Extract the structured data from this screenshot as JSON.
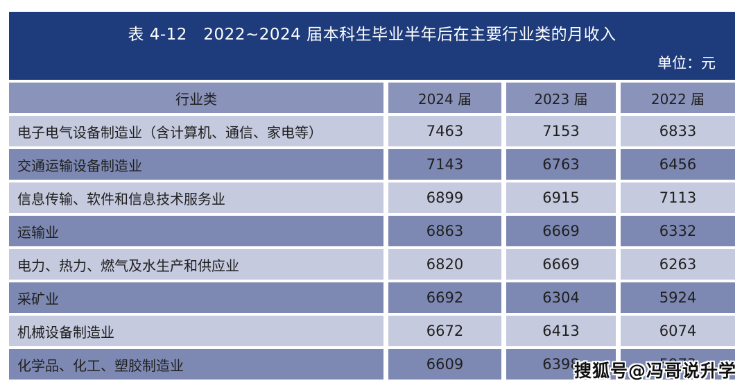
{
  "table": {
    "title": "表 4-12　2022~2024 届本科生毕业半年后在主要行业类的月收入",
    "unit": "单位：元",
    "columns": [
      "行业类",
      "2024 届",
      "2023 届",
      "2022 届"
    ],
    "rows": [
      {
        "industry": "电子电气设备制造业（含计算机、通信、家电等）",
        "values": [
          "7463",
          "7153",
          "6833"
        ]
      },
      {
        "industry": "交通运输设备制造业",
        "values": [
          "7143",
          "6763",
          "6456"
        ]
      },
      {
        "industry": "信息传输、软件和信息技术服务业",
        "values": [
          "6899",
          "6915",
          "7113"
        ]
      },
      {
        "industry": "运输业",
        "values": [
          "6863",
          "6669",
          "6332"
        ]
      },
      {
        "industry": "电力、热力、燃气及水生产和供应业",
        "values": [
          "6820",
          "6669",
          "6263"
        ]
      },
      {
        "industry": "采矿业",
        "values": [
          "6692",
          "6304",
          "5924"
        ]
      },
      {
        "industry": "机械设备制造业",
        "values": [
          "6672",
          "6413",
          "6074"
        ]
      },
      {
        "industry": "化学品、化工、塑胶制造业",
        "values": [
          "6609",
          "6398",
          "5973"
        ]
      }
    ]
  },
  "watermark": {
    "text": "搜狐号@冯哥说升学"
  },
  "colors": {
    "title_bar": "#1e3c7c",
    "header_row": "#8a93ba",
    "row_dark": "#7d89b3",
    "row_light": "#c5cade",
    "title_text": "#ffffff",
    "cell_text": "#1f1f1f",
    "page_bg": "#ffffff"
  },
  "chart_data": {
    "type": "table",
    "title": "表 4-12 2022~2024 届本科生毕业半年后在主要行业类的月收入",
    "unit": "元",
    "categories": [
      "电子电气设备制造业（含计算机、通信、家电等）",
      "交通运输设备制造业",
      "信息传输、软件和信息技术服务业",
      "运输业",
      "电力、热力、燃气及水生产和供应业",
      "采矿业",
      "机械设备制造业",
      "化学品、化工、塑胶制造业"
    ],
    "series": [
      {
        "name": "2024 届",
        "values": [
          7463,
          7143,
          6899,
          6863,
          6820,
          6692,
          6672,
          6609
        ]
      },
      {
        "name": "2023 届",
        "values": [
          7153,
          6763,
          6915,
          6669,
          6669,
          6304,
          6413,
          6398
        ]
      },
      {
        "name": "2022 届",
        "values": [
          6833,
          6456,
          7113,
          6332,
          6263,
          5924,
          6074,
          5973
        ]
      }
    ]
  }
}
